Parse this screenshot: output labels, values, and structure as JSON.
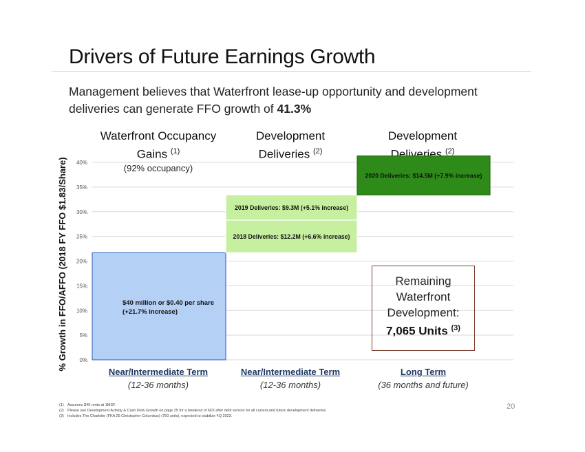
{
  "slide": {
    "title": "Drivers of Future Earnings Growth",
    "subtitle_text": "Management believes that Waterfront lease-up opportunity and development deliveries can generate FFO growth of ",
    "subtitle_highlight": "41.3%",
    "page_number": "20"
  },
  "columns": [
    {
      "heading": "Waterfront Occupancy Gains",
      "note": "(1)",
      "sub": "(92% occupancy)",
      "term": "Near/Intermediate Term",
      "term_sub": "(12-36 months)"
    },
    {
      "heading": "Development Deliveries",
      "note": "(2)",
      "sub": "",
      "term": "Near/Intermediate Term",
      "term_sub": "(12-36 months)"
    },
    {
      "heading": "Development Deliveries",
      "note": "(2)",
      "sub": "",
      "term": "Long Term",
      "term_sub": "(36 months and future)"
    }
  ],
  "remaining_box": {
    "lines": [
      "Remaining",
      "Waterfront",
      "Development:"
    ],
    "units": "7,065 Units",
    "note": "(3)"
  },
  "footnotes": [
    {
      "n": "(1)",
      "text": "Assumes $40 rents at 1MSF."
    },
    {
      "n": "(2)",
      "text": "Please see Development Activity & Cash Flow Growth on page 25 for a breakout of NOI after debt service for all current and future development deliveries."
    },
    {
      "n": "(3)",
      "text": "Includes The Charlotte (FKA 25 Christopher Columbus) (750 units), expected to stabilize 4Q 2023."
    }
  ],
  "colors": {
    "waterfront_fill": "#b4d0f4",
    "waterfront_stroke": "#4472c4",
    "dev_2018_fill": "#c6f0a0",
    "dev_2019_fill": "#c6f0a0",
    "dev_2020_fill": "#2e8b1a",
    "grid": "#d9d9d9"
  },
  "chart_data": {
    "type": "bar",
    "stacked": "waterfall",
    "ylabel": "% Growth in FFO/AFFO (2018 FY FFO $1.83/Share)",
    "ylim": [
      0,
      40
    ],
    "yticks": [
      0,
      5,
      10,
      15,
      20,
      25,
      30,
      35,
      40
    ],
    "ytick_labels": [
      "0%",
      "5%",
      "10%",
      "15%",
      "20%",
      "25%",
      "30%",
      "35%",
      "40%"
    ],
    "grid": true,
    "segments": [
      {
        "column": 0,
        "base": 0,
        "value": 21.7,
        "label": "$40 million or $0.40 per share (+21.7% increase)"
      },
      {
        "column": 1,
        "base": 21.7,
        "value": 6.6,
        "label": "2018 Deliveries: $12.2M (+6.6% increase)"
      },
      {
        "column": 1,
        "base": 28.3,
        "value": 5.1,
        "label": "2019 Deliveries:   $9.3M (+5.1% increase)"
      },
      {
        "column": 2,
        "base": 33.4,
        "value": 7.9,
        "label": "2020 Deliveries:   $14.5M (+7.9% increase)"
      }
    ]
  }
}
